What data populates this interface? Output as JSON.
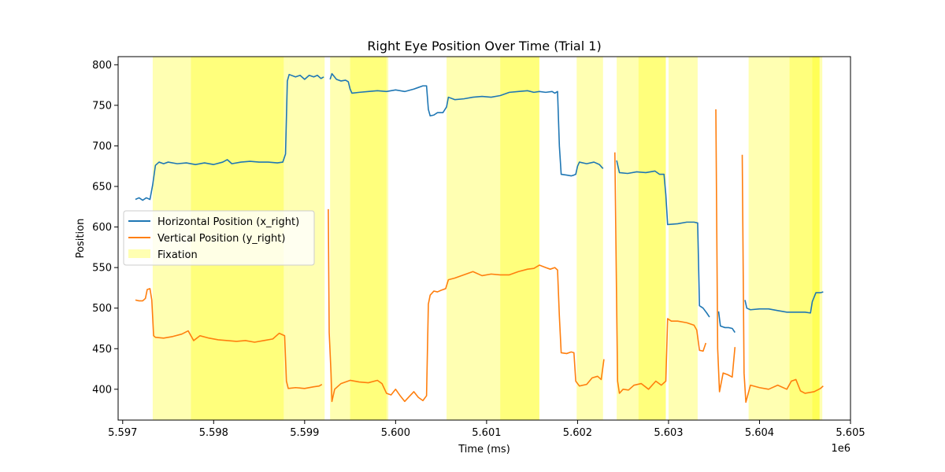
{
  "chart_data": {
    "type": "line",
    "title": "Right Eye Position Over Time (Trial 1)",
    "xlabel": "Time (ms)",
    "ylabel": "Position",
    "x_offset_label": "1e6",
    "xlim": [
      5.59695,
      5.605
    ],
    "ylim": [
      362,
      810
    ],
    "xticks": [
      5.597,
      5.598,
      5.599,
      5.6,
      5.601,
      5.602,
      5.603,
      5.604,
      5.605
    ],
    "xtick_labels": [
      "5.597",
      "5.598",
      "5.599",
      "5.600",
      "5.601",
      "5.602",
      "5.603",
      "5.604",
      "5.605"
    ],
    "yticks": [
      400,
      450,
      500,
      550,
      600,
      650,
      700,
      750,
      800
    ],
    "ytick_labels": [
      "400",
      "450",
      "500",
      "550",
      "600",
      "650",
      "700",
      "750",
      "800"
    ],
    "grid": false,
    "legend_position": "center-left",
    "colors": {
      "x_right": "#1f77b4",
      "y_right": "#ff7f0e",
      "fixation": "#ffff00"
    },
    "fixation_label": "Fixation",
    "fixations": [
      [
        5.59733,
        5.59877
      ],
      [
        5.59775,
        5.59882
      ],
      [
        5.59882,
        5.59922
      ],
      [
        5.59928,
        5.59992
      ],
      [
        5.5995,
        5.5999
      ],
      [
        5.60056,
        5.60158
      ],
      [
        5.60115,
        5.60158
      ],
      [
        5.60199,
        5.60228
      ],
      [
        5.60243,
        5.60297
      ],
      [
        5.60267,
        5.60297
      ],
      [
        5.603,
        5.60332
      ],
      [
        5.60388,
        5.60466
      ],
      [
        5.60433,
        5.60466
      ],
      [
        5.60458,
        5.60469
      ]
    ],
    "series": [
      {
        "name": "Horizontal Position (x_right)",
        "segments": [
          [
            [
              5.59714,
              634
            ],
            [
              5.59718,
              636
            ],
            [
              5.59722,
              633
            ],
            [
              5.59726,
              636
            ],
            [
              5.5973,
              634
            ],
            [
              5.59733,
              652
            ],
            [
              5.59736,
              676
            ],
            [
              5.5974,
              680
            ],
            [
              5.59745,
              678
            ],
            [
              5.5975,
              680
            ],
            [
              5.5976,
              678
            ],
            [
              5.5977,
              679
            ],
            [
              5.5978,
              677
            ],
            [
              5.5979,
              679
            ],
            [
              5.598,
              677
            ],
            [
              5.5981,
              680
            ],
            [
              5.59815,
              683
            ],
            [
              5.5982,
              678
            ],
            [
              5.5983,
              680
            ],
            [
              5.5984,
              681
            ],
            [
              5.5985,
              680
            ],
            [
              5.5986,
              680
            ],
            [
              5.5987,
              679
            ],
            [
              5.59876,
              680
            ],
            [
              5.59879,
              690
            ],
            [
              5.59881,
              780
            ],
            [
              5.59883,
              788
            ],
            [
              5.5989,
              785
            ],
            [
              5.59895,
              787
            ],
            [
              5.599,
              782
            ],
            [
              5.59905,
              787
            ],
            [
              5.5991,
              785
            ],
            [
              5.59914,
              787
            ],
            [
              5.59918,
              783
            ],
            [
              5.59921,
              785
            ]
          ],
          [
            [
              5.59928,
              782
            ],
            [
              5.5993,
              789
            ],
            [
              5.59935,
              782
            ],
            [
              5.5994,
              780
            ],
            [
              5.59945,
              781
            ],
            [
              5.59948,
              779
            ],
            [
              5.5995,
              770
            ],
            [
              5.59952,
              765
            ],
            [
              5.5996,
              766
            ],
            [
              5.5997,
              767
            ],
            [
              5.5998,
              768
            ],
            [
              5.5999,
              767
            ],
            [
              5.6,
              769
            ],
            [
              5.6001,
              767
            ],
            [
              5.6002,
              770
            ],
            [
              5.60025,
              772
            ],
            [
              5.6003,
              774
            ],
            [
              5.60034,
              774
            ],
            [
              5.60036,
              745
            ],
            [
              5.60038,
              737
            ],
            [
              5.60042,
              738
            ],
            [
              5.60046,
              741
            ],
            [
              5.60052,
              741
            ],
            [
              5.60056,
              748
            ],
            [
              5.60058,
              760
            ],
            [
              5.60065,
              757
            ],
            [
              5.60075,
              758
            ],
            [
              5.60085,
              760
            ],
            [
              5.60095,
              761
            ],
            [
              5.60105,
              760
            ],
            [
              5.60115,
              762
            ],
            [
              5.60125,
              766
            ],
            [
              5.60135,
              767
            ],
            [
              5.60145,
              768
            ],
            [
              5.60152,
              766
            ],
            [
              5.60158,
              767
            ],
            [
              5.60165,
              766
            ],
            [
              5.60172,
              767
            ],
            [
              5.60175,
              765
            ],
            [
              5.60178,
              767
            ],
            [
              5.6018,
              700
            ],
            [
              5.60182,
              665
            ],
            [
              5.60188,
              664
            ],
            [
              5.60193,
              663
            ],
            [
              5.60196,
              664
            ],
            [
              5.60198,
              665
            ],
            [
              5.602,
              675
            ],
            [
              5.60202,
              680
            ],
            [
              5.6021,
              678
            ],
            [
              5.60218,
              680
            ],
            [
              5.60224,
              677
            ],
            [
              5.60228,
              672
            ]
          ],
          [
            [
              5.60243,
              682
            ],
            [
              5.60246,
              667
            ],
            [
              5.60255,
              666
            ],
            [
              5.60265,
              668
            ],
            [
              5.60275,
              667
            ],
            [
              5.60285,
              669
            ],
            [
              5.6029,
              665
            ],
            [
              5.60295,
              665
            ],
            [
              5.60297,
              640
            ],
            [
              5.60299,
              603
            ],
            [
              5.6031,
              604
            ],
            [
              5.6032,
              606
            ],
            [
              5.60328,
              606
            ],
            [
              5.60332,
              605
            ],
            [
              5.60334,
              503
            ],
            [
              5.60338,
              500
            ],
            [
              5.60342,
              494
            ],
            [
              5.60345,
              489
            ]
          ],
          [
            [
              5.60355,
              496
            ],
            [
              5.60357,
              478
            ],
            [
              5.60362,
              476
            ],
            [
              5.60366,
              476
            ],
            [
              5.6037,
              475
            ],
            [
              5.60373,
              470
            ]
          ],
          [
            [
              5.60384,
              510
            ],
            [
              5.60386,
              500
            ],
            [
              5.6039,
              498
            ],
            [
              5.604,
              499
            ],
            [
              5.6041,
              499
            ],
            [
              5.6042,
              497
            ],
            [
              5.6043,
              495
            ],
            [
              5.6044,
              495
            ],
            [
              5.6045,
              495
            ],
            [
              5.60456,
              494
            ],
            [
              5.60458,
              508
            ],
            [
              5.60462,
              519
            ],
            [
              5.60467,
              519
            ],
            [
              5.6047,
              520
            ]
          ]
        ]
      },
      {
        "name": "Vertical Position (y_right)",
        "segments": [
          [
            [
              5.59714,
              510
            ],
            [
              5.59718,
              509
            ],
            [
              5.59722,
              509
            ],
            [
              5.59725,
              512
            ],
            [
              5.59727,
              523
            ],
            [
              5.5973,
              524
            ],
            [
              5.59732,
              510
            ],
            [
              5.59734,
              466
            ],
            [
              5.59736,
              464
            ],
            [
              5.59745,
              463
            ],
            [
              5.59755,
              465
            ],
            [
              5.59765,
              468
            ],
            [
              5.59772,
              472
            ],
            [
              5.59778,
              460
            ],
            [
              5.59785,
              466
            ],
            [
              5.59795,
              463
            ],
            [
              5.59805,
              461
            ],
            [
              5.59815,
              460
            ],
            [
              5.59825,
              459
            ],
            [
              5.59835,
              460
            ],
            [
              5.59845,
              458
            ],
            [
              5.59855,
              460
            ],
            [
              5.59865,
              462
            ],
            [
              5.59872,
              469
            ],
            [
              5.59878,
              466
            ],
            [
              5.5988,
              410
            ],
            [
              5.59882,
              401
            ],
            [
              5.5989,
              402
            ],
            [
              5.599,
              401
            ],
            [
              5.5991,
              403
            ],
            [
              5.59916,
              404
            ],
            [
              5.59919,
              406
            ]
          ],
          [
            [
              5.59926,
              622
            ],
            [
              5.59927,
              470
            ],
            [
              5.59929,
              420
            ],
            [
              5.5993,
              385
            ],
            [
              5.59933,
              400
            ],
            [
              5.5994,
              407
            ],
            [
              5.5995,
              411
            ],
            [
              5.5996,
              409
            ],
            [
              5.5997,
              408
            ],
            [
              5.5998,
              411
            ],
            [
              5.59985,
              407
            ],
            [
              5.5999,
              395
            ],
            [
              5.59995,
              393
            ],
            [
              5.6,
              400
            ],
            [
              5.60005,
              392
            ],
            [
              5.6001,
              385
            ],
            [
              5.60015,
              391
            ],
            [
              5.6002,
              397
            ],
            [
              5.60025,
              390
            ],
            [
              5.6003,
              386
            ],
            [
              5.60034,
              392
            ],
            [
              5.60036,
              505
            ],
            [
              5.60038,
              516
            ],
            [
              5.60042,
              521
            ],
            [
              5.60046,
              520
            ],
            [
              5.6005,
              522
            ],
            [
              5.60055,
              524
            ],
            [
              5.60058,
              535
            ],
            [
              5.60065,
              537
            ],
            [
              5.60075,
              541
            ],
            [
              5.60085,
              545
            ],
            [
              5.60095,
              540
            ],
            [
              5.60105,
              542
            ],
            [
              5.60115,
              541
            ],
            [
              5.60125,
              541
            ],
            [
              5.60135,
              545
            ],
            [
              5.60145,
              548
            ],
            [
              5.60152,
              549
            ],
            [
              5.60158,
              553
            ],
            [
              5.60165,
              550
            ],
            [
              5.6017,
              548
            ],
            [
              5.60175,
              550
            ],
            [
              5.60178,
              547
            ],
            [
              5.6018,
              490
            ],
            [
              5.60182,
              445
            ],
            [
              5.60188,
              444
            ],
            [
              5.60193,
              446
            ],
            [
              5.60196,
              445
            ],
            [
              5.60198,
              410
            ],
            [
              5.60202,
              404
            ],
            [
              5.6021,
              406
            ],
            [
              5.60216,
              414
            ],
            [
              5.60222,
              416
            ],
            [
              5.60226,
              412
            ],
            [
              5.60229,
              437
            ]
          ],
          [
            [
              5.60241,
              692
            ],
            [
              5.60243,
              500
            ],
            [
              5.60244,
              410
            ],
            [
              5.60246,
              395
            ],
            [
              5.6025,
              400
            ],
            [
              5.60256,
              399
            ],
            [
              5.60262,
              405
            ],
            [
              5.6027,
              407
            ],
            [
              5.60278,
              400
            ],
            [
              5.60286,
              410
            ],
            [
              5.60292,
              405
            ],
            [
              5.60297,
              410
            ],
            [
              5.60299,
              487
            ],
            [
              5.60303,
              484
            ],
            [
              5.6031,
              484
            ],
            [
              5.6032,
              482
            ],
            [
              5.60328,
              479
            ],
            [
              5.60331,
              473
            ],
            [
              5.60334,
              448
            ],
            [
              5.60338,
              447
            ],
            [
              5.60341,
              457
            ]
          ],
          [
            [
              5.60352,
              745
            ],
            [
              5.60354,
              450
            ],
            [
              5.60356,
              397
            ],
            [
              5.6036,
              420
            ],
            [
              5.60365,
              418
            ],
            [
              5.6037,
              415
            ],
            [
              5.60373,
              452
            ]
          ],
          [
            [
              5.60381,
              689
            ],
            [
              5.60383,
              420
            ],
            [
              5.60385,
              384
            ],
            [
              5.6039,
              405
            ],
            [
              5.604,
              402
            ],
            [
              5.6041,
              400
            ],
            [
              5.6042,
              405
            ],
            [
              5.6043,
              400
            ],
            [
              5.60435,
              410
            ],
            [
              5.6044,
              412
            ],
            [
              5.60445,
              398
            ],
            [
              5.6045,
              395
            ],
            [
              5.6046,
              397
            ],
            [
              5.60467,
              401
            ],
            [
              5.6047,
              404
            ]
          ]
        ]
      }
    ]
  }
}
